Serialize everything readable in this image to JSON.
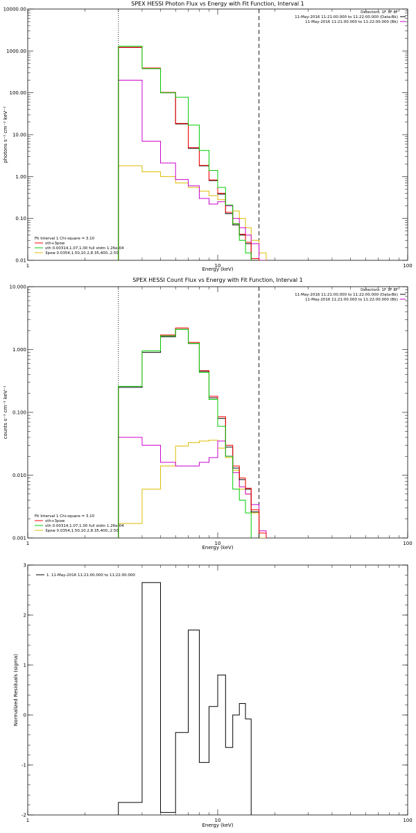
{
  "chart_data": [
    {
      "type": "line",
      "title": "SPEX HESSI Photon Flux vs Energy with Fit Function, Interval 1",
      "xlabel": "Energy (keV)",
      "ylabel": "photons s⁻¹ cm⁻² keV⁻¹",
      "xscale": "log",
      "yscale": "log",
      "xlim": [
        1,
        100
      ],
      "ylim": [
        0.01,
        10000
      ],
      "xticks": [
        {
          "v": 1,
          "label": "1"
        },
        {
          "v": 10,
          "label": "10"
        },
        {
          "v": 100,
          "label": "100"
        }
      ],
      "yticks": [
        {
          "v": 0.01,
          "label": "0.01"
        },
        {
          "v": 0.1,
          "label": "0.10"
        },
        {
          "v": 1,
          "label": "1.00"
        },
        {
          "v": 10,
          "label": "10.00"
        },
        {
          "v": 100,
          "label": "100.00"
        },
        {
          "v": 1000,
          "label": "1000.00"
        },
        {
          "v": 10000,
          "label": "10000.00"
        }
      ],
      "vlines": [
        {
          "x": 3.0,
          "style": "dotted"
        },
        {
          "x": 16.5,
          "style": "dashed"
        }
      ],
      "header": [
        "Detectors: 1F 3F 8F",
        "11-May-2016 11:21:00.000 to 11:22:00.000 (Data-Bk)",
        "11-May-2016 11:21:00.000 to 11:22:00.000 (Bk)"
      ],
      "header_colors": [
        "#000000",
        "#000000",
        "#cc00cc"
      ],
      "legend_title": "Fit Interval 1   Chi-square = 3.10",
      "legend": [
        {
          "label": "vth+3pow",
          "color": "#ff0000"
        },
        {
          "label": "vth 0.00314,1.07,1.00  full stdm 1.26e-04",
          "color": "#00cc00"
        },
        {
          "label": "3pow 0.0354,1.50,10.2,8.35,400.,2.50",
          "color": "#ddbb00"
        }
      ],
      "edges": [
        3.0,
        4.0,
        5.0,
        6.0,
        7.0,
        8.0,
        9.0,
        10.0,
        11.0,
        12.0,
        13.0,
        14.0,
        15.0,
        16.5,
        18.0
      ],
      "series": [
        {
          "color": "#000000",
          "values": [
            1200,
            380,
            100,
            18,
            4.7,
            1.8,
            0.8,
            0.38,
            0.13,
            0.07,
            0.04,
            0.025,
            0.01,
            null
          ]
        },
        {
          "color": "#ff0000",
          "values": [
            1220,
            390,
            102,
            18.5,
            4.9,
            1.85,
            0.83,
            0.4,
            0.14,
            0.075,
            0.042,
            0.027,
            0.011,
            null
          ]
        },
        {
          "color": "#00cc00",
          "values": [
            1300,
            380,
            100,
            78,
            17,
            4.2,
            1.4,
            0.55,
            0.21,
            0.075,
            0.03,
            0.015,
            null,
            null
          ]
        },
        {
          "color": "#ddbb00",
          "values": [
            1.8,
            1.3,
            1.0,
            0.7,
            0.55,
            0.45,
            0.35,
            0.28,
            0.2,
            0.15,
            0.1,
            0.06,
            0.03,
            0.015
          ]
        },
        {
          "color": "#cc00cc",
          "values": [
            200,
            7.0,
            2.1,
            0.85,
            0.6,
            0.3,
            0.22,
            0.25,
            0.2,
            0.1,
            0.06,
            0.04,
            0.025,
            0.01
          ]
        }
      ]
    },
    {
      "type": "line",
      "title": "SPEX HESSI Count Flux vs Energy with Fit Function, Interval 1",
      "xlabel": "Energy (keV)",
      "ylabel": "counts s⁻¹ cm⁻² keV⁻¹",
      "xscale": "log",
      "yscale": "log",
      "xlim": [
        1,
        100
      ],
      "ylim": [
        0.001,
        10
      ],
      "xticks": [
        {
          "v": 1,
          "label": "1"
        },
        {
          "v": 10,
          "label": "10"
        },
        {
          "v": 100,
          "label": "100"
        }
      ],
      "yticks": [
        {
          "v": 0.001,
          "label": "0.001"
        },
        {
          "v": 0.01,
          "label": "0.010"
        },
        {
          "v": 0.1,
          "label": "0.100"
        },
        {
          "v": 1,
          "label": "1.000"
        },
        {
          "v": 10,
          "label": "10.000"
        }
      ],
      "vlines": [
        {
          "x": 3.0,
          "style": "dotted"
        },
        {
          "x": 16.5,
          "style": "dashed"
        }
      ],
      "header": [
        "Detectors: 1F 3F 8F",
        "11-May-2016 11:21:00.000 to 11:22:00.000 (Data-Bk)",
        "11-May-2016 11:21:00.000 to 11:22:00.000 (Bk)"
      ],
      "header_colors": [
        "#000000",
        "#000000",
        "#cc00cc"
      ],
      "legend_title": "Fit Interval 1   Chi-square = 3.10",
      "legend": [
        {
          "label": "vth+3pow",
          "color": "#ff0000"
        },
        {
          "label": "vth 0.00314,1.07,1.00  full stdm 1.26e-04",
          "color": "#00cc00"
        },
        {
          "label": "3pow 0.0354,1.50,10.2,8.35,400.,2.50",
          "color": "#ddbb00"
        }
      ],
      "edges": [
        3.0,
        4.0,
        5.0,
        6.0,
        7.0,
        8.0,
        9.0,
        10.0,
        11.0,
        12.0,
        13.0,
        14.0,
        15.0,
        16.5,
        18.0
      ],
      "series": [
        {
          "color": "#000000",
          "values": [
            0.25,
            0.9,
            1.6,
            2.1,
            1.25,
            0.45,
            0.17,
            0.08,
            0.028,
            0.013,
            0.0085,
            0.006,
            0.0026,
            null
          ]
        },
        {
          "color": "#ff0000",
          "values": [
            0.26,
            0.95,
            1.7,
            2.2,
            1.3,
            0.46,
            0.18,
            0.085,
            0.03,
            0.014,
            0.009,
            0.0062,
            0.0028,
            0.0012
          ]
        },
        {
          "color": "#00cc00",
          "values": [
            0.26,
            0.95,
            1.65,
            2.1,
            1.25,
            0.43,
            0.16,
            0.06,
            0.02,
            0.006,
            0.004,
            0.0025,
            null,
            null
          ]
        },
        {
          "color": "#ddbb00",
          "values": [
            0.0017,
            0.006,
            0.014,
            0.029,
            0.033,
            0.035,
            0.036,
            0.027,
            0.019,
            0.012,
            0.006,
            0.005,
            0.0025,
            0.001
          ]
        },
        {
          "color": "#cc00cc",
          "values": [
            0.04,
            0.03,
            0.016,
            0.014,
            0.014,
            0.016,
            0.019,
            0.035,
            0.02,
            0.011,
            0.0065,
            0.005,
            0.0034,
            0.0013
          ]
        }
      ]
    },
    {
      "type": "line",
      "title": "",
      "xlabel": "Energy (keV)",
      "ylabel": "Normalized Residuals (sigma)",
      "xscale": "log",
      "yscale": "linear",
      "xlim": [
        1,
        100
      ],
      "ylim": [
        -2,
        3
      ],
      "xticks": [
        {
          "v": 1,
          "label": "1"
        },
        {
          "v": 10,
          "label": "10"
        },
        {
          "v": 100,
          "label": "100"
        }
      ],
      "yticks": [
        {
          "v": -2,
          "label": "-2"
        },
        {
          "v": -1,
          "label": "-1"
        },
        {
          "v": 0,
          "label": "0"
        },
        {
          "v": 1,
          "label": "1"
        },
        {
          "v": 2,
          "label": "2"
        },
        {
          "v": 3,
          "label": "3"
        }
      ],
      "legend_title": "1. 11-May-2016 11:21:00.000 to 11:22:00.000",
      "legend": [],
      "edges": [
        3.0,
        4.0,
        5.0,
        6.0,
        7.0,
        8.0,
        9.0,
        10.0,
        11.0,
        12.0,
        13.0,
        14.0,
        15.0,
        16.5
      ],
      "series": [
        {
          "color": "#000000",
          "values": [
            -1.75,
            2.65,
            -1.95,
            -0.35,
            1.7,
            -0.95,
            0.17,
            0.8,
            -0.65,
            0.0,
            0.23,
            -0.08,
            null
          ]
        }
      ]
    }
  ]
}
